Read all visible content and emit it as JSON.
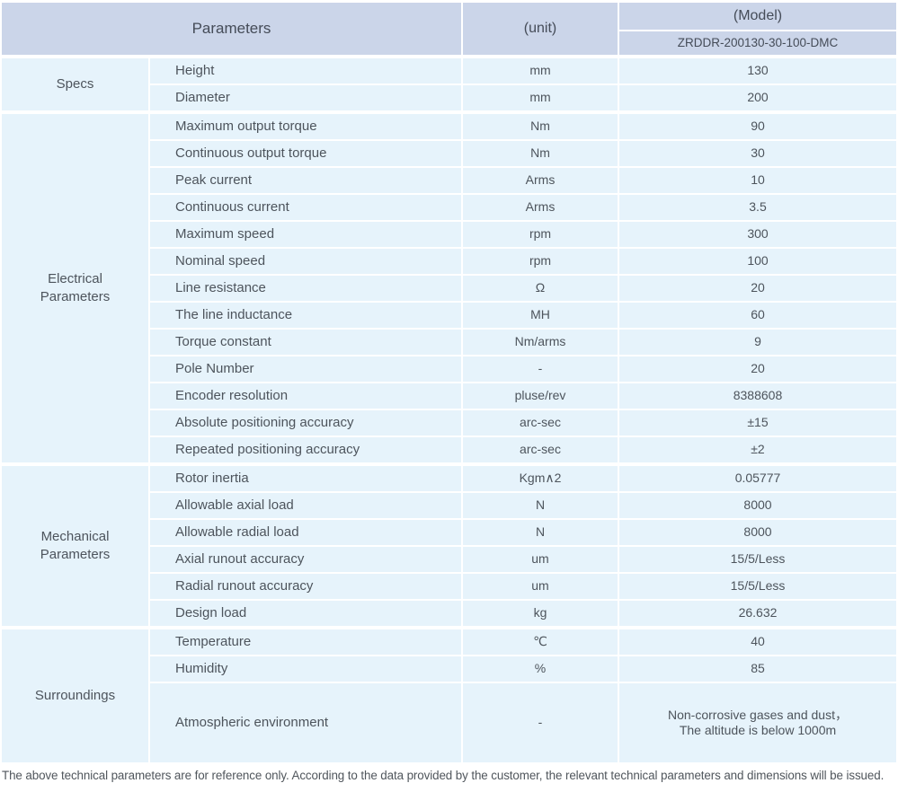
{
  "header": {
    "parameters_label": "Parameters",
    "unit_label": "(unit)",
    "model_label": "(Model)",
    "model_value": "ZRDDR-200130-30-100-DMC"
  },
  "groups": [
    {
      "name": "Specs",
      "rows": [
        {
          "param": "Height",
          "unit": "mm",
          "value": "130"
        },
        {
          "param": "Diameter",
          "unit": "mm",
          "value": "200"
        }
      ]
    },
    {
      "name": "Electrical Parameters",
      "rows": [
        {
          "param": "Maximum output torque",
          "unit": "Nm",
          "value": "90"
        },
        {
          "param": "Continuous output torque",
          "unit": "Nm",
          "value": "30"
        },
        {
          "param": "Peak current",
          "unit": "Arms",
          "value": "10"
        },
        {
          "param": "Continuous current",
          "unit": "Arms",
          "value": "3.5"
        },
        {
          "param": "Maximum speed",
          "unit": "rpm",
          "value": "300"
        },
        {
          "param": "Nominal speed",
          "unit": "rpm",
          "value": "100"
        },
        {
          "param": "Line resistance",
          "unit": "Ω",
          "value": "20"
        },
        {
          "param": "The line inductance",
          "unit": "MH",
          "value": "60"
        },
        {
          "param": "Torque constant",
          "unit": "Nm/arms",
          "value": "9"
        },
        {
          "param": "Pole Number",
          "unit": "-",
          "value": "20"
        },
        {
          "param": "Encoder resolution",
          "unit": "pluse/rev",
          "value": "8388608"
        },
        {
          "param": "Absolute positioning accuracy",
          "unit": "arc-sec",
          "value": "±15"
        },
        {
          "param": "Repeated positioning accuracy",
          "unit": "arc-sec",
          "value": "±2"
        }
      ]
    },
    {
      "name": "Mechanical Parameters",
      "rows": [
        {
          "param": "Rotor inertia",
          "unit": "Kgm∧2",
          "value": "0.05777"
        },
        {
          "param": "Allowable axial load",
          "unit": "N",
          "value": "8000"
        },
        {
          "param": "Allowable radial load",
          "unit": "N",
          "value": "8000"
        },
        {
          "param": "Axial runout accuracy",
          "unit": "um",
          "value": "15/5/Less"
        },
        {
          "param": "Radial runout accuracy",
          "unit": "um",
          "value": "15/5/Less"
        },
        {
          "param": "Design load",
          "unit": "kg",
          "value": "26.632"
        }
      ]
    },
    {
      "name": "Surroundings",
      "rows": [
        {
          "param": "Temperature",
          "unit": "℃",
          "value": "40"
        },
        {
          "param": "Humidity",
          "unit": "%",
          "value": "85"
        },
        {
          "param": "Atmospheric environment",
          "unit": "-",
          "value": "Non-corrosive gases and dust，\nThe altitude is below 1000m"
        }
      ]
    }
  ],
  "footer": {
    "note": "The above technical parameters are for reference only. According to the data provided by the customer, the relevant technical parameters and dimensions will be issued."
  },
  "colors": {
    "header_bg": "#cbd5e9",
    "row_bg": "#e6f3fb",
    "text": "#4d545c",
    "separator": "#ffffff"
  }
}
